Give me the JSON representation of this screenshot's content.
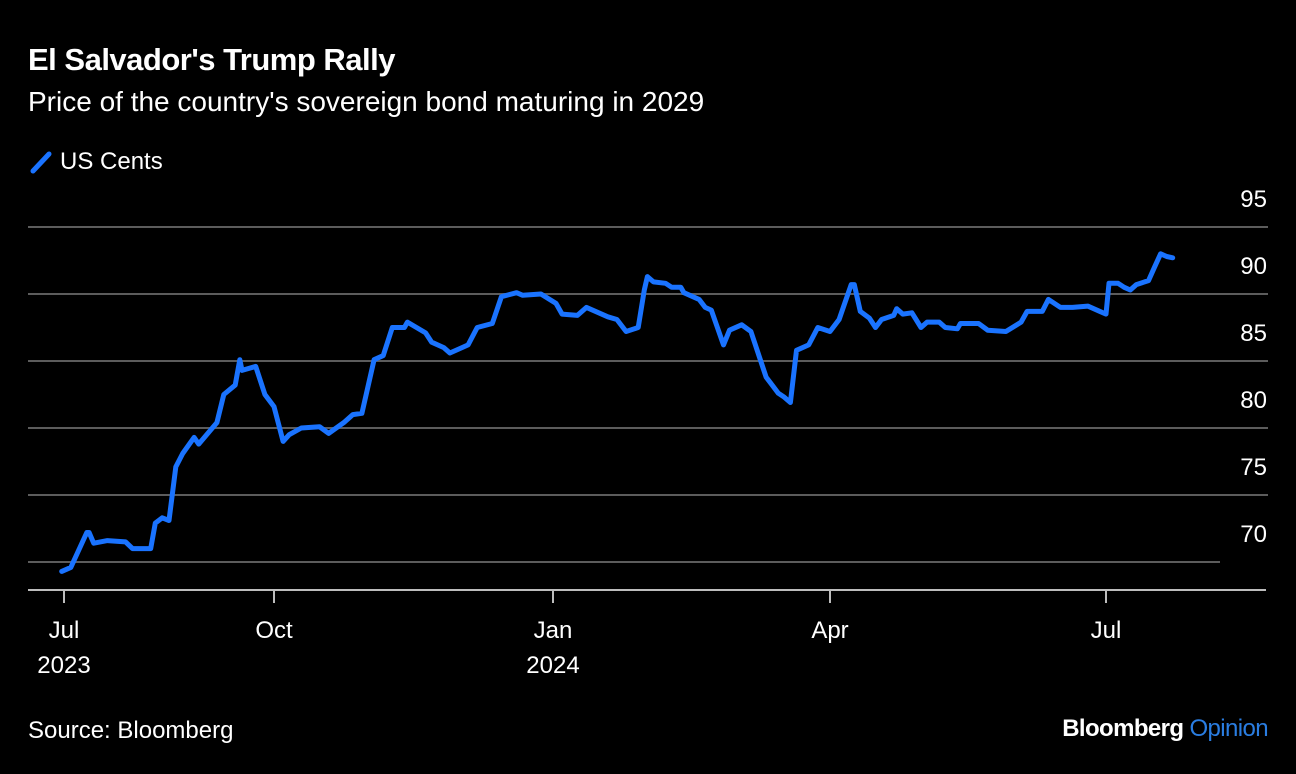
{
  "header": {
    "title": "El Salvador's Trump Rally",
    "subtitle": "Price of the country's sovereign bond maturing in 2029"
  },
  "footer": {
    "source": "Source: Bloomberg",
    "logo_main": "Bloomberg",
    "logo_accent": "Opinion"
  },
  "colors": {
    "line": "#1a73ff",
    "background": "#000000",
    "grid": "#5c5c5c",
    "axis": "#bdbdbd",
    "logo_accent": "#2a7de1"
  },
  "chart_data": {
    "type": "line",
    "title": "El Salvador's Trump Rally",
    "subtitle": "Price of the country's sovereign bond maturing in 2029",
    "xlabel": "",
    "ylabel": "",
    "legend": {
      "position": "top-left",
      "entries": [
        "US Cents"
      ]
    },
    "grid": true,
    "ylim": [
      68,
      95
    ],
    "y_ticks": [
      95,
      90,
      85,
      80,
      75,
      70
    ],
    "x_ticks": [
      {
        "date": "2023-07-01",
        "label": "Jul",
        "sub": "2023"
      },
      {
        "date": "2023-10-01",
        "label": "Oct",
        "sub": ""
      },
      {
        "date": "2024-01-01",
        "label": "Jan",
        "sub": "2024"
      },
      {
        "date": "2024-04-01",
        "label": "Apr",
        "sub": ""
      },
      {
        "date": "2024-07-01",
        "label": "Jul",
        "sub": ""
      }
    ],
    "series": [
      {
        "name": "US Cents",
        "points": [
          [
            "2023-06-30",
            69.3
          ],
          [
            "2023-07-04",
            69.6
          ],
          [
            "2023-07-11",
            72.2
          ],
          [
            "2023-07-12",
            72.2
          ],
          [
            "2023-07-14",
            71.4
          ],
          [
            "2023-07-20",
            71.6
          ],
          [
            "2023-07-28",
            71.5
          ],
          [
            "2023-07-31",
            71.0
          ],
          [
            "2023-08-08",
            71.0
          ],
          [
            "2023-08-10",
            72.9
          ],
          [
            "2023-08-13",
            73.3
          ],
          [
            "2023-08-16",
            73.1
          ],
          [
            "2023-08-19",
            77.1
          ],
          [
            "2023-08-22",
            78.1
          ],
          [
            "2023-08-27",
            79.3
          ],
          [
            "2023-08-29",
            78.8
          ],
          [
            "2023-09-06",
            80.4
          ],
          [
            "2023-09-09",
            82.5
          ],
          [
            "2023-09-14",
            83.2
          ],
          [
            "2023-09-16",
            85.1
          ],
          [
            "2023-09-17",
            84.3
          ],
          [
            "2023-09-23",
            84.6
          ],
          [
            "2023-09-27",
            82.5
          ],
          [
            "2023-10-01",
            81.6
          ],
          [
            "2023-10-04",
            79.0
          ],
          [
            "2023-10-06",
            79.5
          ],
          [
            "2023-10-10",
            80.0
          ],
          [
            "2023-10-16",
            80.1
          ],
          [
            "2023-10-19",
            79.6
          ],
          [
            "2023-10-24",
            80.4
          ],
          [
            "2023-10-27",
            81.0
          ],
          [
            "2023-10-30",
            81.1
          ],
          [
            "2023-11-03",
            85.1
          ],
          [
            "2023-11-06",
            85.4
          ],
          [
            "2023-11-09",
            87.5
          ],
          [
            "2023-11-13",
            87.5
          ],
          [
            "2023-11-14",
            87.9
          ],
          [
            "2023-11-17",
            87.5
          ],
          [
            "2023-11-20",
            87.1
          ],
          [
            "2023-11-22",
            86.4
          ],
          [
            "2023-11-26",
            86.0
          ],
          [
            "2023-11-28",
            85.6
          ],
          [
            "2023-12-02",
            86.0
          ],
          [
            "2023-12-04",
            86.2
          ],
          [
            "2023-12-07",
            87.5
          ],
          [
            "2023-12-12",
            87.8
          ],
          [
            "2023-12-15",
            89.8
          ],
          [
            "2023-12-20",
            90.1
          ],
          [
            "2023-12-22",
            89.9
          ],
          [
            "2023-12-28",
            90.0
          ],
          [
            "2024-01-02",
            89.3
          ],
          [
            "2024-01-04",
            88.5
          ],
          [
            "2024-01-09",
            88.4
          ],
          [
            "2024-01-12",
            89.0
          ],
          [
            "2024-01-15",
            88.7
          ],
          [
            "2024-01-19",
            88.3
          ],
          [
            "2024-01-22",
            88.1
          ],
          [
            "2024-01-25",
            87.2
          ],
          [
            "2024-01-29",
            87.5
          ],
          [
            "2024-01-31",
            90.3
          ],
          [
            "2024-02-01",
            91.3
          ],
          [
            "2024-02-03",
            90.9
          ],
          [
            "2024-02-07",
            90.8
          ],
          [
            "2024-02-09",
            90.5
          ],
          [
            "2024-02-12",
            90.5
          ],
          [
            "2024-02-13",
            90.1
          ],
          [
            "2024-02-18",
            89.6
          ],
          [
            "2024-02-20",
            89.0
          ],
          [
            "2024-02-22",
            88.8
          ],
          [
            "2024-02-26",
            86.2
          ],
          [
            "2024-02-28",
            87.3
          ],
          [
            "2024-03-03",
            87.7
          ],
          [
            "2024-03-06",
            87.2
          ],
          [
            "2024-03-11",
            83.8
          ],
          [
            "2024-03-13",
            83.2
          ],
          [
            "2024-03-15",
            82.6
          ],
          [
            "2024-03-17",
            82.3
          ],
          [
            "2024-03-19",
            81.9
          ],
          [
            "2024-03-21",
            85.8
          ],
          [
            "2024-03-25",
            86.2
          ],
          [
            "2024-03-28",
            87.5
          ],
          [
            "2024-04-01",
            87.2
          ],
          [
            "2024-04-04",
            88.1
          ],
          [
            "2024-04-08",
            90.7
          ],
          [
            "2024-04-09",
            90.7
          ],
          [
            "2024-04-11",
            88.7
          ],
          [
            "2024-04-14",
            88.2
          ],
          [
            "2024-04-16",
            87.5
          ],
          [
            "2024-04-18",
            88.1
          ],
          [
            "2024-04-22",
            88.4
          ],
          [
            "2024-04-23",
            88.9
          ],
          [
            "2024-04-25",
            88.5
          ],
          [
            "2024-04-28",
            88.6
          ],
          [
            "2024-05-01",
            87.5
          ],
          [
            "2024-05-03",
            87.9
          ],
          [
            "2024-05-07",
            87.9
          ],
          [
            "2024-05-09",
            87.5
          ],
          [
            "2024-05-13",
            87.4
          ],
          [
            "2024-05-14",
            87.8
          ],
          [
            "2024-05-20",
            87.8
          ],
          [
            "2024-05-23",
            87.3
          ],
          [
            "2024-05-29",
            87.2
          ],
          [
            "2024-06-03",
            87.9
          ],
          [
            "2024-06-05",
            88.7
          ],
          [
            "2024-06-10",
            88.7
          ],
          [
            "2024-06-12",
            89.6
          ],
          [
            "2024-06-16",
            89.0
          ],
          [
            "2024-06-20",
            89.0
          ],
          [
            "2024-06-25",
            89.1
          ],
          [
            "2024-06-29",
            88.7
          ],
          [
            "2024-07-01",
            88.5
          ],
          [
            "2024-07-02",
            90.8
          ],
          [
            "2024-07-05",
            90.8
          ],
          [
            "2024-07-07",
            90.5
          ],
          [
            "2024-07-09",
            90.3
          ],
          [
            "2024-07-11",
            90.7
          ],
          [
            "2024-07-15",
            91.0
          ],
          [
            "2024-07-17",
            92.0
          ],
          [
            "2024-07-19",
            93.0
          ],
          [
            "2024-07-21",
            92.8
          ],
          [
            "2024-07-23",
            92.7
          ]
        ]
      }
    ]
  }
}
